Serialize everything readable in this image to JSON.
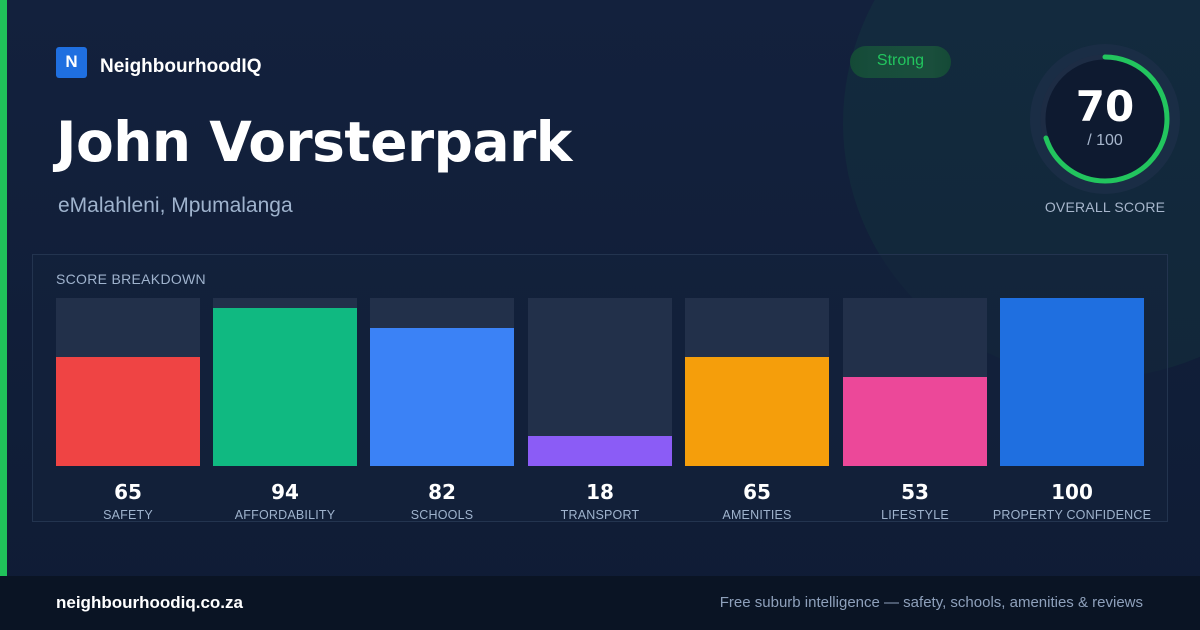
{
  "brand": {
    "logo_letter": "N",
    "name": "NeighbourhoodIQ"
  },
  "header": {
    "title": "John Vorsterpark",
    "location": "eMalahleni, Mpumalanga"
  },
  "badge": {
    "label": "Strong",
    "color": "#22c55e"
  },
  "overall_score": {
    "value": "70",
    "max_text": "/ 100",
    "fraction": 0.7,
    "caption": "OVERALL SCORE",
    "ring_color": "#22c55e"
  },
  "breakdown": {
    "title": "SCORE BREAKDOWN",
    "items": [
      {
        "label": "SAFETY",
        "value": "65",
        "score": 65,
        "color": "#ef4444"
      },
      {
        "label": "AFFORDABILITY",
        "value": "94",
        "score": 94,
        "color": "#10b981"
      },
      {
        "label": "SCHOOLS",
        "value": "82",
        "score": 82,
        "color": "#3b82f6"
      },
      {
        "label": "TRANSPORT",
        "value": "18",
        "score": 18,
        "color": "#8b5cf6"
      },
      {
        "label": "AMENITIES",
        "value": "65",
        "score": 65,
        "color": "#f59e0b"
      },
      {
        "label": "LIFESTYLE",
        "value": "53",
        "score": 53,
        "color": "#ec4899"
      },
      {
        "label": "PROPERTY CONFIDENCE",
        "value": "100",
        "score": 100,
        "color": "#1f6fe0"
      }
    ]
  },
  "footer": {
    "url": "neighbourhoodiq.co.za",
    "tagline": "Free suburb intelligence — safety, schools, amenities & reviews"
  }
}
